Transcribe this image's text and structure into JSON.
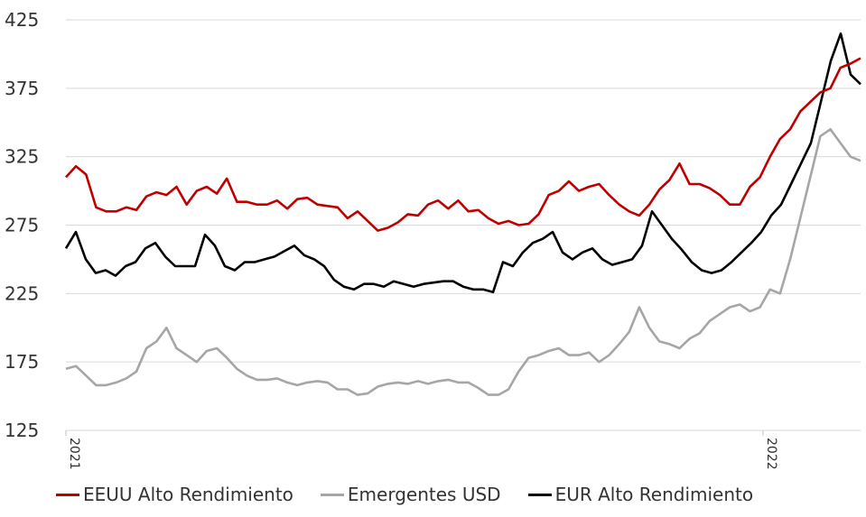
{
  "chart_data": {
    "type": "line",
    "title": "",
    "xlabel": "",
    "ylabel": "",
    "ylim": [
      125,
      425
    ],
    "yticks": [
      125,
      175,
      225,
      275,
      325,
      375,
      425
    ],
    "xticks": [
      "2021",
      "2022"
    ],
    "grid": "horizontal",
    "legend_position": "bottom",
    "x_index_range": [
      0,
      57
    ],
    "x_tick_index": [
      0,
      50
    ],
    "series": [
      {
        "name": "EEUU Alto Rendimiento",
        "color": "#c00000",
        "values": [
          310,
          318,
          312,
          288,
          285,
          285,
          288,
          286,
          296,
          299,
          297,
          303,
          290,
          300,
          303,
          298,
          309,
          292,
          292,
          290,
          290,
          293,
          287,
          294,
          295,
          290,
          289,
          288,
          280,
          285,
          278,
          271,
          273,
          277,
          283,
          282,
          290,
          293,
          287,
          293,
          285,
          286,
          280,
          276,
          278,
          275,
          276,
          283,
          297,
          300,
          307,
          300,
          303,
          305,
          297,
          290,
          285,
          282,
          290,
          301,
          308,
          320,
          305,
          305,
          302,
          297,
          290,
          290,
          303,
          310,
          325,
          338,
          345,
          358,
          365,
          372,
          375,
          390,
          393,
          397
        ]
      },
      {
        "name": "Emergentes USD",
        "color": "#a6a6a6",
        "values": [
          170,
          172,
          165,
          158,
          158,
          160,
          163,
          168,
          185,
          190,
          200,
          185,
          180,
          175,
          183,
          185,
          178,
          170,
          165,
          162,
          162,
          163,
          160,
          158,
          160,
          161,
          160,
          155,
          155,
          151,
          152,
          157,
          159,
          160,
          159,
          161,
          159,
          161,
          162,
          160,
          160,
          156,
          151,
          151,
          155,
          168,
          178,
          180,
          183,
          185,
          180,
          180,
          182,
          175,
          180,
          188,
          197,
          215,
          200,
          190,
          188,
          185,
          192,
          196,
          205,
          210,
          215,
          217,
          212,
          215,
          228,
          225,
          250,
          280,
          310,
          340,
          345,
          335,
          325,
          322
        ]
      },
      {
        "name": "EUR Alto Rendimiento",
        "color": "#000000",
        "values": [
          258,
          270,
          250,
          240,
          242,
          238,
          245,
          248,
          258,
          262,
          252,
          245,
          245,
          245,
          268,
          260,
          245,
          242,
          248,
          248,
          250,
          252,
          256,
          260,
          253,
          250,
          245,
          235,
          230,
          228,
          232,
          232,
          230,
          234,
          232,
          230,
          232,
          233,
          234,
          234,
          230,
          228,
          228,
          226,
          248,
          245,
          255,
          262,
          265,
          270,
          255,
          250,
          255,
          258,
          250,
          246,
          248,
          250,
          260,
          285,
          275,
          265,
          257,
          248,
          242,
          240,
          242,
          248,
          255,
          262,
          270,
          282,
          290,
          305,
          320,
          335,
          365,
          395,
          415,
          385,
          378
        ]
      }
    ]
  },
  "legend": {
    "items": [
      {
        "label": "EEUU Alto Rendimiento",
        "color": "#c00000"
      },
      {
        "label": "Emergentes USD",
        "color": "#a6a6a6"
      },
      {
        "label": "EUR Alto Rendimiento",
        "color": "#000000"
      }
    ]
  }
}
